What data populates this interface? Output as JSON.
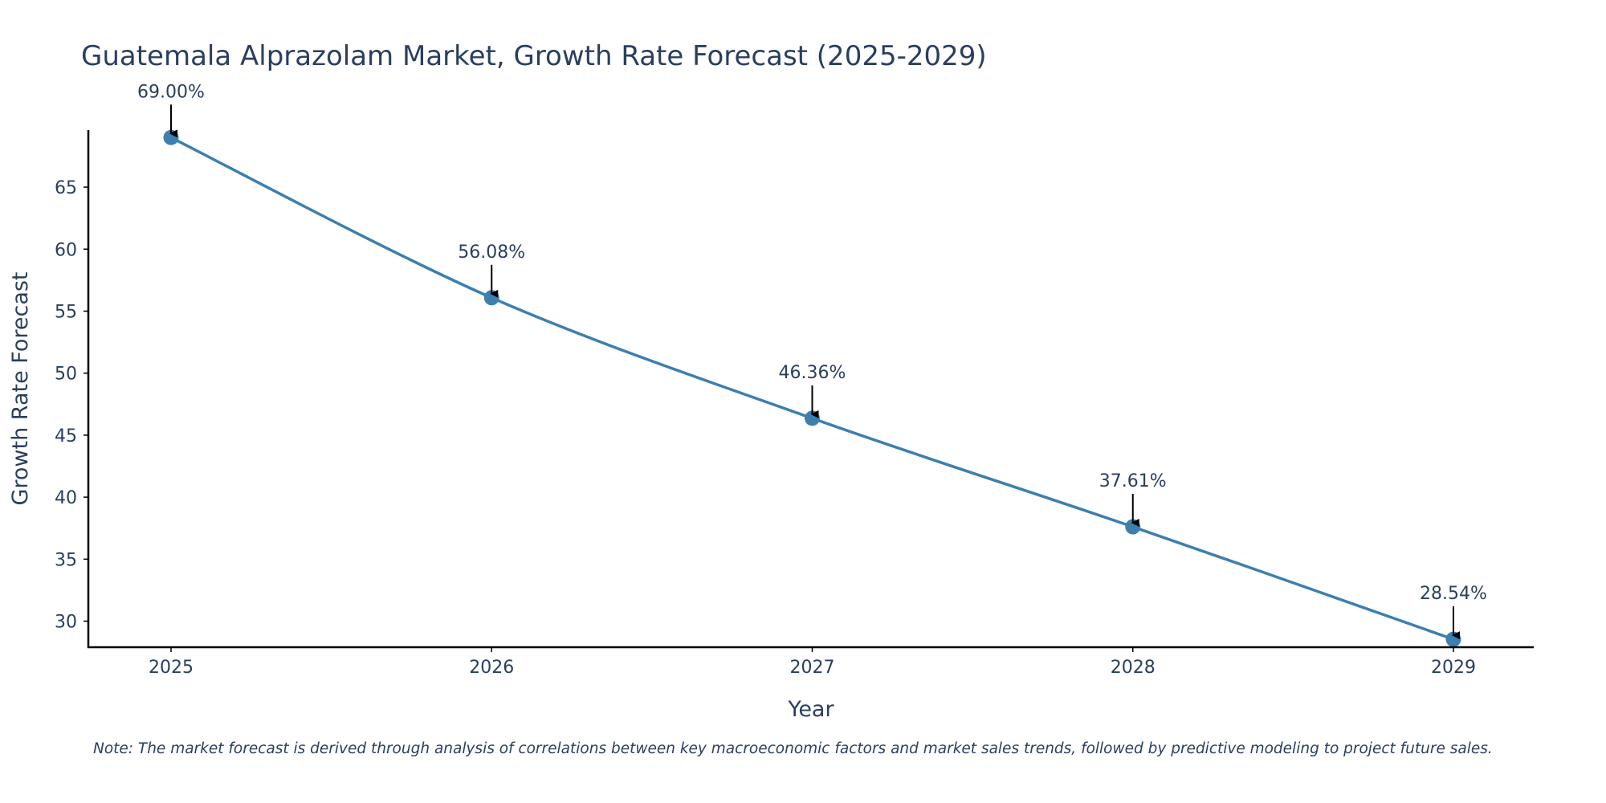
{
  "chart_data": {
    "type": "line",
    "title": "Guatemala Alprazolam Market, Growth Rate Forecast (2025-2029)",
    "xlabel": "Year",
    "ylabel": "Growth Rate Forecast",
    "categories": [
      "2025",
      "2026",
      "2027",
      "2028",
      "2029"
    ],
    "values": [
      69.0,
      56.08,
      46.36,
      37.61,
      28.54
    ],
    "data_labels": [
      "69.00%",
      "56.08%",
      "46.36%",
      "37.61%",
      "28.54%"
    ],
    "y_ticks": [
      30,
      35,
      40,
      45,
      50,
      55,
      60,
      65
    ],
    "y_tick_labels": [
      "30",
      "35",
      "40",
      "45",
      "50",
      "55",
      "60",
      "65"
    ],
    "ylim": [
      27.9,
      69.6
    ],
    "grid": false,
    "legend": "none",
    "line_color": "#3d7fae",
    "marker_color": "#3d7fae",
    "annotation_arrow_color": "#000000",
    "note": "Note: The market forecast is derived through analysis of correlations between key macroeconomic factors and market sales trends, followed by predictive modeling to project future sales."
  }
}
